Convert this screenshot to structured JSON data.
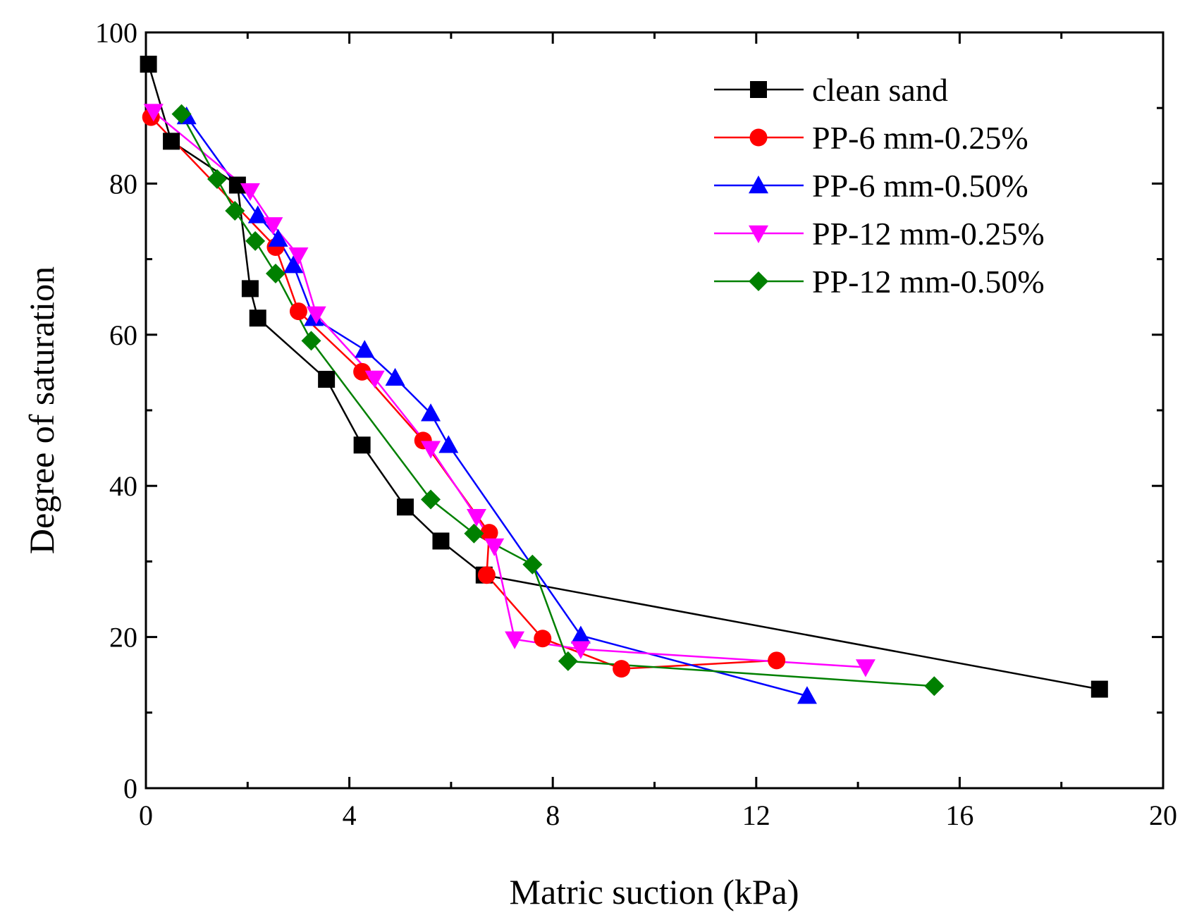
{
  "chart_data": {
    "type": "line",
    "xlabel": "Matric suction (kPa)",
    "ylabel": "Degree of saturation",
    "xlim": [
      0,
      20
    ],
    "ylim": [
      0,
      100
    ],
    "xticks": [
      0,
      4,
      8,
      12,
      16,
      20
    ],
    "yticks": [
      0,
      20,
      40,
      60,
      80,
      100
    ],
    "grid": false,
    "legend_position": "top-right",
    "series": [
      {
        "name": "clean sand",
        "color": "#000000",
        "marker": "square",
        "points": [
          [
            0.05,
            95.8
          ],
          [
            0.5,
            85.6
          ],
          [
            1.8,
            79.8
          ],
          [
            2.05,
            66.1
          ],
          [
            2.2,
            62.2
          ],
          [
            3.55,
            54.1
          ],
          [
            4.25,
            45.4
          ],
          [
            5.1,
            37.2
          ],
          [
            5.8,
            32.7
          ],
          [
            6.65,
            28.2
          ],
          [
            18.75,
            13.1
          ]
        ]
      },
      {
        "name": "PP-6 mm-0.25%",
        "color": "#ff0000",
        "marker": "circle",
        "points": [
          [
            0.1,
            88.8
          ],
          [
            2.55,
            71.6
          ],
          [
            3.0,
            63.1
          ],
          [
            4.25,
            55.1
          ],
          [
            5.45,
            46.0
          ],
          [
            6.75,
            33.8
          ],
          [
            6.7,
            28.2
          ],
          [
            7.8,
            19.8
          ],
          [
            9.35,
            15.8
          ],
          [
            12.4,
            16.9
          ]
        ]
      },
      {
        "name": "PP-6 mm-0.50%",
        "color": "#0000ff",
        "marker": "triangle-up",
        "points": [
          [
            0.8,
            88.9
          ],
          [
            2.2,
            75.8
          ],
          [
            2.6,
            72.7
          ],
          [
            2.9,
            69.2
          ],
          [
            3.3,
            62.2
          ],
          [
            4.3,
            58.0
          ],
          [
            4.9,
            54.3
          ],
          [
            5.6,
            49.6
          ],
          [
            5.95,
            45.4
          ],
          [
            8.55,
            20.2
          ],
          [
            13.0,
            12.2
          ]
        ]
      },
      {
        "name": "PP-12 mm-0.25%",
        "color": "#ff00ff",
        "marker": "triangle-down",
        "points": [
          [
            0.15,
            89.5
          ],
          [
            2.05,
            79.0
          ],
          [
            2.5,
            74.5
          ],
          [
            3.0,
            70.5
          ],
          [
            3.35,
            62.7
          ],
          [
            4.5,
            54.2
          ],
          [
            5.6,
            44.9
          ],
          [
            6.5,
            35.9
          ],
          [
            6.85,
            32.0
          ],
          [
            7.25,
            19.7
          ],
          [
            8.55,
            18.4
          ],
          [
            14.15,
            16.0
          ]
        ]
      },
      {
        "name": "PP-12 mm-0.50%",
        "color": "#008000",
        "marker": "diamond",
        "points": [
          [
            0.7,
            89.2
          ],
          [
            1.4,
            80.6
          ],
          [
            1.75,
            76.4
          ],
          [
            2.15,
            72.4
          ],
          [
            2.55,
            68.1
          ],
          [
            3.25,
            59.2
          ],
          [
            5.6,
            38.2
          ],
          [
            6.45,
            33.7
          ],
          [
            7.6,
            29.6
          ],
          [
            8.3,
            16.8
          ],
          [
            15.5,
            13.5
          ]
        ]
      }
    ]
  }
}
